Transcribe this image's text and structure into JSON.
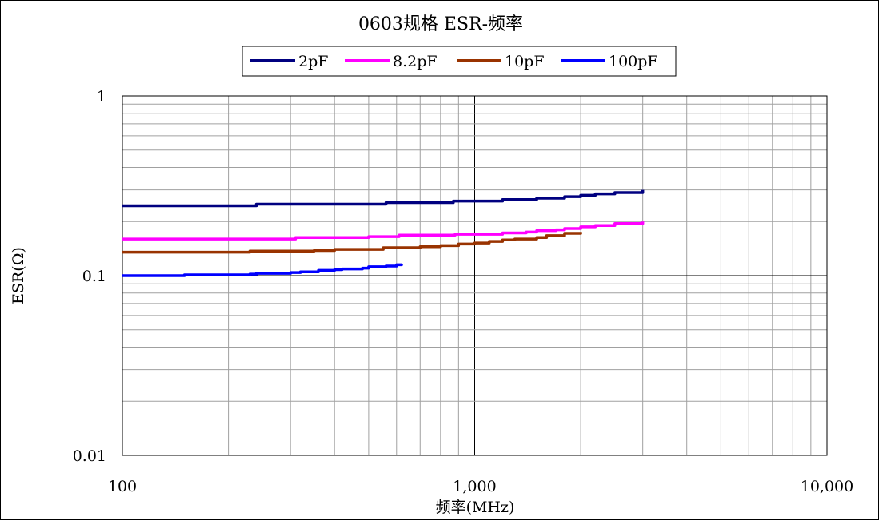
{
  "chart_data": {
    "type": "line",
    "title": "0603规格 ESR-频率",
    "xlabel": "频率(MHz)",
    "ylabel": "ESR(Ω)",
    "x_scale": "log",
    "y_scale": "log",
    "xlim": [
      100,
      10000
    ],
    "ylim": [
      0.01,
      1
    ],
    "x_tick_labels": [
      "100",
      "1,000",
      "10,000"
    ],
    "y_tick_labels": [
      "1",
      "0.1",
      "0.01"
    ],
    "grid": true,
    "legend_position": "top",
    "series": [
      {
        "name": "2pF",
        "color": "#000080",
        "x": [
          100,
          150,
          200,
          230,
          240,
          300,
          400,
          500,
          560,
          600,
          700,
          800,
          870,
          1000,
          1200,
          1250,
          1500,
          1800,
          2000,
          2200,
          2500,
          3000
        ],
        "y": [
          0.245,
          0.245,
          0.245,
          0.245,
          0.25,
          0.25,
          0.25,
          0.25,
          0.255,
          0.255,
          0.255,
          0.255,
          0.26,
          0.26,
          0.265,
          0.265,
          0.27,
          0.275,
          0.28,
          0.285,
          0.29,
          0.3
        ]
      },
      {
        "name": "8.2pF",
        "color": "#FF00FF",
        "x": [
          100,
          200,
          300,
          310,
          400,
          500,
          600,
          610,
          800,
          880,
          1000,
          1200,
          1400,
          1500,
          1700,
          1800,
          2000,
          2200,
          2500,
          3000
        ],
        "y": [
          0.16,
          0.16,
          0.16,
          0.163,
          0.163,
          0.165,
          0.165,
          0.168,
          0.168,
          0.17,
          0.17,
          0.173,
          0.175,
          0.178,
          0.18,
          0.183,
          0.187,
          0.19,
          0.195,
          0.2
        ]
      },
      {
        "name": "10pF",
        "color": "#993300",
        "x": [
          100,
          200,
          230,
          300,
          350,
          400,
          500,
          550,
          600,
          700,
          800,
          900,
          1000,
          1100,
          1200,
          1300,
          1500,
          1600,
          1800,
          2000
        ],
        "y": [
          0.135,
          0.135,
          0.137,
          0.137,
          0.138,
          0.14,
          0.14,
          0.143,
          0.143,
          0.145,
          0.147,
          0.15,
          0.152,
          0.155,
          0.158,
          0.16,
          0.163,
          0.167,
          0.172,
          0.175
        ]
      },
      {
        "name": "100pF",
        "color": "#0000FF",
        "x": [
          100,
          130,
          140,
          150,
          200,
          230,
          240,
          300,
          320,
          360,
          400,
          420,
          480,
          500,
          560,
          600,
          620
        ],
        "y": [
          0.1,
          0.1,
          0.1,
          0.101,
          0.101,
          0.102,
          0.103,
          0.104,
          0.105,
          0.107,
          0.108,
          0.109,
          0.11,
          0.112,
          0.113,
          0.115,
          0.116
        ]
      }
    ]
  }
}
